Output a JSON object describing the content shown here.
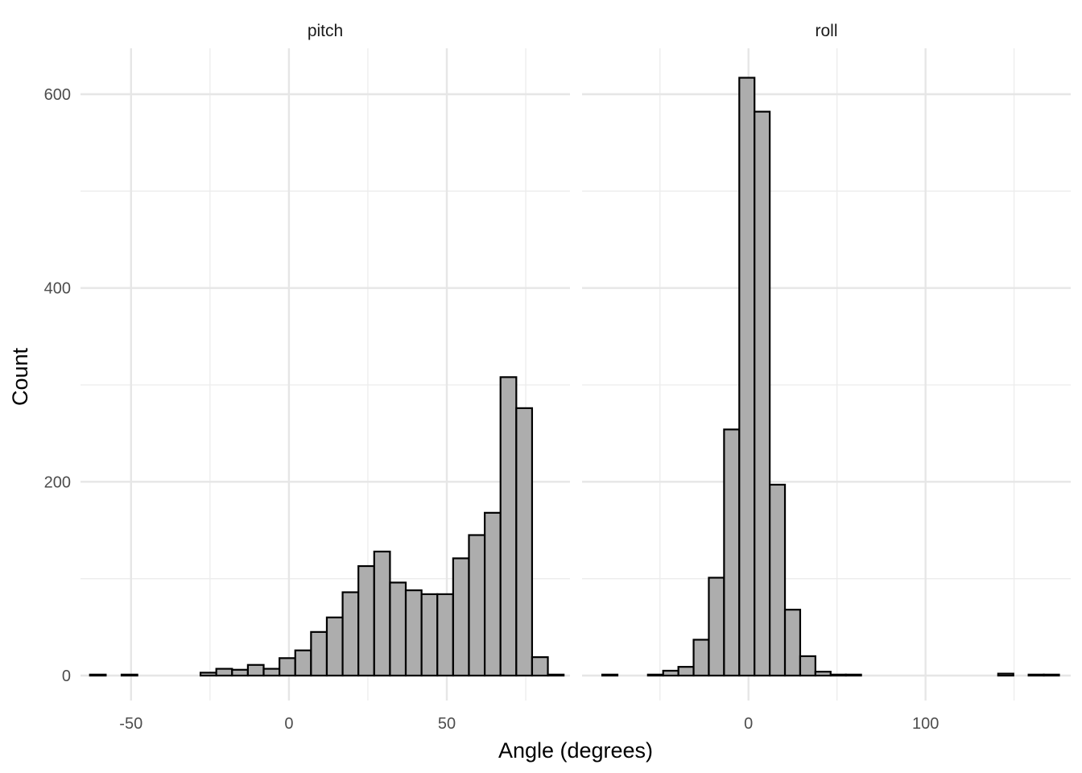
{
  "chart_data": {
    "type": "bar",
    "subtype": "histogram",
    "xlabel": "Angle (degrees)",
    "ylabel": "Count",
    "ylim": [
      0,
      640
    ],
    "y_ticks": [
      0,
      200,
      400,
      600
    ],
    "grid": true,
    "facets": [
      {
        "label": "pitch",
        "xlim": [
          -66,
          89
        ],
        "x_ticks": [
          -50,
          0,
          50
        ],
        "x_minor": [
          -25,
          25,
          75
        ],
        "bin_width": 5,
        "bins": [
          {
            "x0": -63,
            "x1": -58,
            "count": 1
          },
          {
            "x0": -58,
            "x1": -53,
            "count": 0
          },
          {
            "x0": -53,
            "x1": -48,
            "count": 1
          },
          {
            "x0": -48,
            "x1": -43,
            "count": 0
          },
          {
            "x0": -43,
            "x1": -38,
            "count": 0
          },
          {
            "x0": -38,
            "x1": -33,
            "count": 0
          },
          {
            "x0": -33,
            "x1": -28,
            "count": 0
          },
          {
            "x0": -28,
            "x1": -23,
            "count": 3
          },
          {
            "x0": -23,
            "x1": -18,
            "count": 7
          },
          {
            "x0": -18,
            "x1": -13,
            "count": 6
          },
          {
            "x0": -13,
            "x1": -8,
            "count": 11
          },
          {
            "x0": -8,
            "x1": -3,
            "count": 7
          },
          {
            "x0": -3,
            "x1": 2,
            "count": 18
          },
          {
            "x0": 2,
            "x1": 7,
            "count": 26
          },
          {
            "x0": 7,
            "x1": 12,
            "count": 45
          },
          {
            "x0": 12,
            "x1": 17,
            "count": 60
          },
          {
            "x0": 17,
            "x1": 22,
            "count": 86
          },
          {
            "x0": 22,
            "x1": 27,
            "count": 113
          },
          {
            "x0": 27,
            "x1": 32,
            "count": 128
          },
          {
            "x0": 32,
            "x1": 37,
            "count": 96
          },
          {
            "x0": 37,
            "x1": 42,
            "count": 88
          },
          {
            "x0": 42,
            "x1": 47,
            "count": 84
          },
          {
            "x0": 47,
            "x1": 52,
            "count": 84
          },
          {
            "x0": 52,
            "x1": 57,
            "count": 121
          },
          {
            "x0": 57,
            "x1": 62,
            "count": 145
          },
          {
            "x0": 62,
            "x1": 67,
            "count": 168
          },
          {
            "x0": 67,
            "x1": 72,
            "count": 308
          },
          {
            "x0": 72,
            "x1": 77,
            "count": 276
          },
          {
            "x0": 77,
            "x1": 82,
            "count": 19
          },
          {
            "x0": 82,
            "x1": 87,
            "count": 1
          }
        ]
      },
      {
        "label": "roll",
        "xlim": [
          -94,
          182
        ],
        "x_ticks": [
          0,
          100
        ],
        "x_minor": [
          -50,
          50,
          150
        ],
        "bin_width": 8.6,
        "bins": [
          {
            "x0": -82.6,
            "x1": -74.0,
            "count": 1
          },
          {
            "x0": -74.0,
            "x1": -65.4,
            "count": 0
          },
          {
            "x0": -65.4,
            "x1": -56.8,
            "count": 0
          },
          {
            "x0": -56.8,
            "x1": -48.2,
            "count": 1
          },
          {
            "x0": -48.2,
            "x1": -39.6,
            "count": 5
          },
          {
            "x0": -39.6,
            "x1": -31.0,
            "count": 9
          },
          {
            "x0": -31.0,
            "x1": -22.4,
            "count": 37
          },
          {
            "x0": -22.4,
            "x1": -13.8,
            "count": 101
          },
          {
            "x0": -13.8,
            "x1": -5.2,
            "count": 254
          },
          {
            "x0": -5.2,
            "x1": 3.4,
            "count": 617
          },
          {
            "x0": 3.4,
            "x1": 12.0,
            "count": 582
          },
          {
            "x0": 12.0,
            "x1": 20.6,
            "count": 197
          },
          {
            "x0": 20.6,
            "x1": 29.2,
            "count": 68
          },
          {
            "x0": 29.2,
            "x1": 37.8,
            "count": 20
          },
          {
            "x0": 37.8,
            "x1": 46.4,
            "count": 4
          },
          {
            "x0": 46.4,
            "x1": 55.0,
            "count": 1
          },
          {
            "x0": 55.0,
            "x1": 63.6,
            "count": 1
          },
          {
            "x0": 63.6,
            "x1": 72.2,
            "count": 0
          },
          {
            "x0": 72.2,
            "x1": 80.8,
            "count": 0
          },
          {
            "x0": 80.8,
            "x1": 89.4,
            "count": 0
          },
          {
            "x0": 89.4,
            "x1": 98.0,
            "count": 0
          },
          {
            "x0": 98.0,
            "x1": 106.6,
            "count": 0
          },
          {
            "x0": 106.6,
            "x1": 115.2,
            "count": 0
          },
          {
            "x0": 115.2,
            "x1": 123.8,
            "count": 0
          },
          {
            "x0": 123.8,
            "x1": 132.4,
            "count": 0
          },
          {
            "x0": 132.4,
            "x1": 141.0,
            "count": 0
          },
          {
            "x0": 141.0,
            "x1": 149.6,
            "count": 2
          },
          {
            "x0": 149.6,
            "x1": 158.2,
            "count": 0
          },
          {
            "x0": 158.2,
            "x1": 166.8,
            "count": 1
          },
          {
            "x0": 166.8,
            "x1": 175.4,
            "count": 1
          }
        ]
      }
    ],
    "colors": {
      "bar_fill": "#adadad",
      "bar_stroke": "#000000",
      "grid": "#ebebeb"
    }
  }
}
